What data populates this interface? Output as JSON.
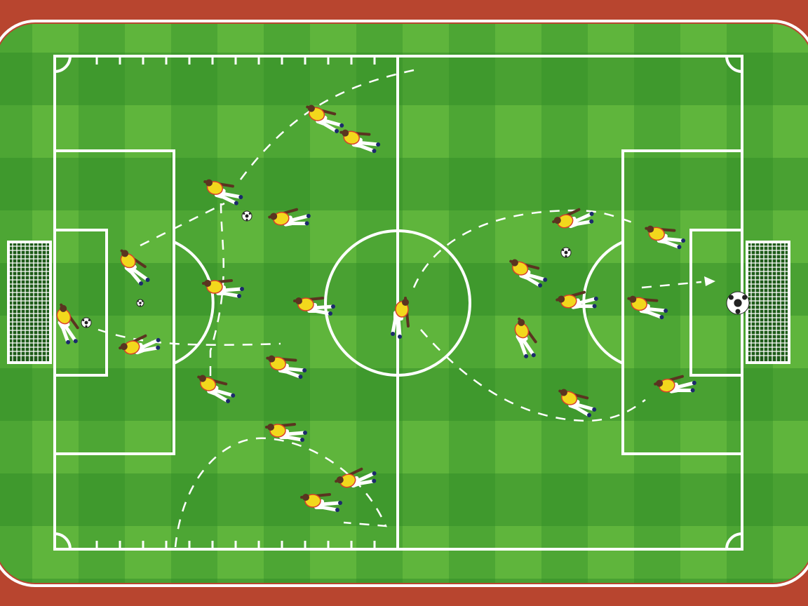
{
  "scene": {
    "subject": "soccer-pitch-tactics-illustration",
    "colors": {
      "track": "#b8452f",
      "track_line": "#ffffff",
      "grass_light": "#5fb53c",
      "grass_dark": "#2e8a25",
      "lines": "#ffffff",
      "jersey": "#f2d81c",
      "jersey_trim": "#d8402a",
      "shorts": "#ffffff",
      "skin": "#5a3420",
      "path": "#ffffff"
    },
    "icons": [
      "soccer-ball-icon",
      "goal-net-icon",
      "arrow-icon"
    ]
  }
}
